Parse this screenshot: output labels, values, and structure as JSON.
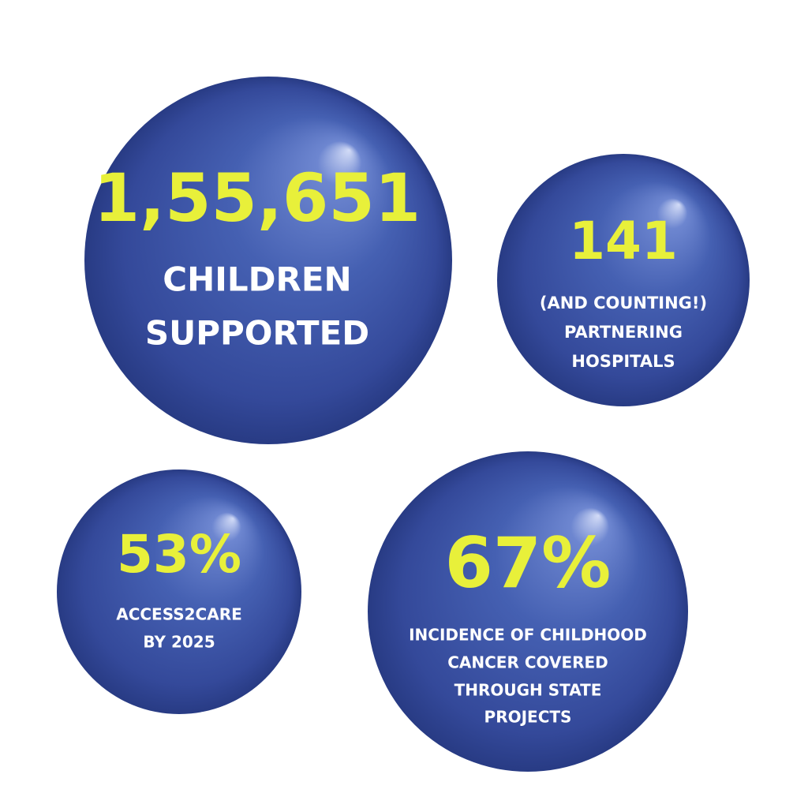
{
  "bubbles": [
    {
      "value": "1,55,651",
      "label": [
        "CHILDREN",
        "SUPPORTED"
      ]
    },
    {
      "value": "141",
      "label": [
        "(AND COUNTING!)",
        "PARTNERING",
        "HOSPITALS"
      ]
    },
    {
      "value": "53%",
      "label": [
        "ACCESS2CARE",
        "BY 2025"
      ]
    },
    {
      "value": "67%",
      "label": [
        "INCIDENCE OF CHILDHOOD",
        "CANCER COVERED",
        "THROUGH STATE",
        "PROJECTS"
      ]
    }
  ]
}
